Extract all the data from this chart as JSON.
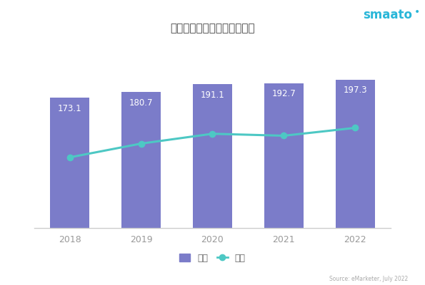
{
  "years": [
    "2018",
    "2019",
    "2020",
    "2021",
    "2022"
  ],
  "bar_values": [
    173.1,
    180.7,
    191.1,
    192.7,
    197.3
  ],
  "line_values": [
    0.58,
    0.615,
    0.64,
    0.635,
    0.655
  ],
  "bar_color": "#7B7CC9",
  "line_color": "#4DC8C4",
  "background_color": "#ffffff",
  "plot_bg_color": "#f5f5f8",
  "title": "同步使用互联网和电视的观众",
  "legend_bar": "百万",
  "legend_line": "占比",
  "bar_label_color": "#ffffff",
  "axis_color": "#999999",
  "source_text": "Source: eMarketer, July 2022",
  "logo_text": "smaato",
  "ylim_bar": [
    0,
    235
  ],
  "line_ylim": [
    0.4,
    0.85
  ]
}
